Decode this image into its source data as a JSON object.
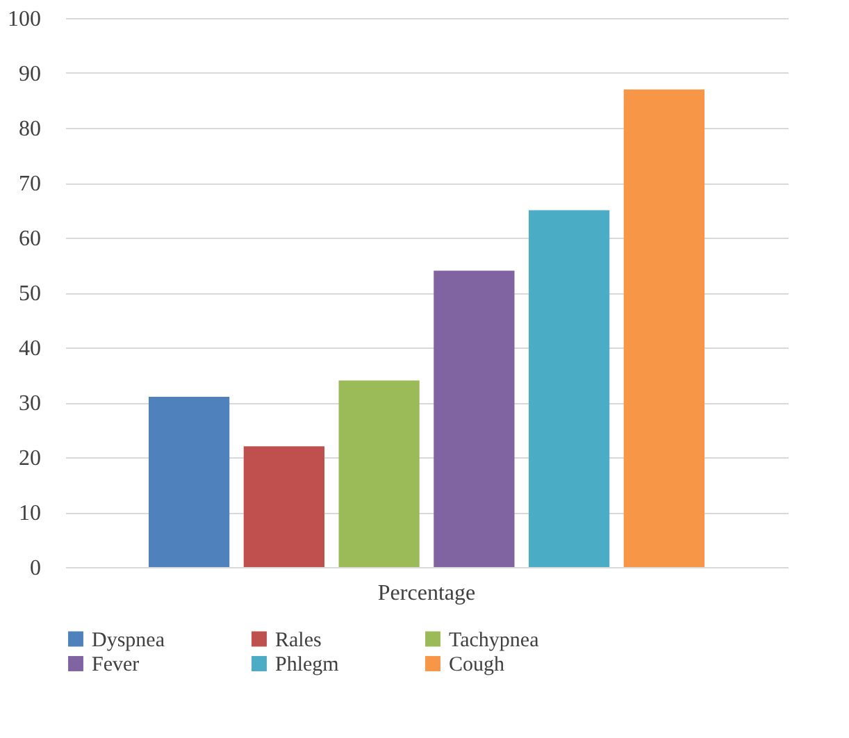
{
  "chart_data": {
    "type": "bar",
    "categories": [
      "Percentage"
    ],
    "series": [
      {
        "name": "Dyspnea",
        "color": "#4f81bd",
        "values": [
          31
        ]
      },
      {
        "name": "Rales",
        "color": "#c0504d",
        "values": [
          22
        ]
      },
      {
        "name": "Tachypnea",
        "color": "#9bbb59",
        "values": [
          34
        ]
      },
      {
        "name": "Fever",
        "color": "#8064a2",
        "values": [
          54
        ]
      },
      {
        "name": "Phlegm",
        "color": "#4bacc6",
        "values": [
          65
        ]
      },
      {
        "name": "Cough",
        "color": "#f79646",
        "values": [
          87
        ]
      }
    ],
    "ylim": [
      0,
      100
    ],
    "yticks": [
      0,
      10,
      20,
      30,
      40,
      50,
      60,
      70,
      80,
      90,
      100
    ],
    "grid": "y",
    "legend": "bottom"
  }
}
